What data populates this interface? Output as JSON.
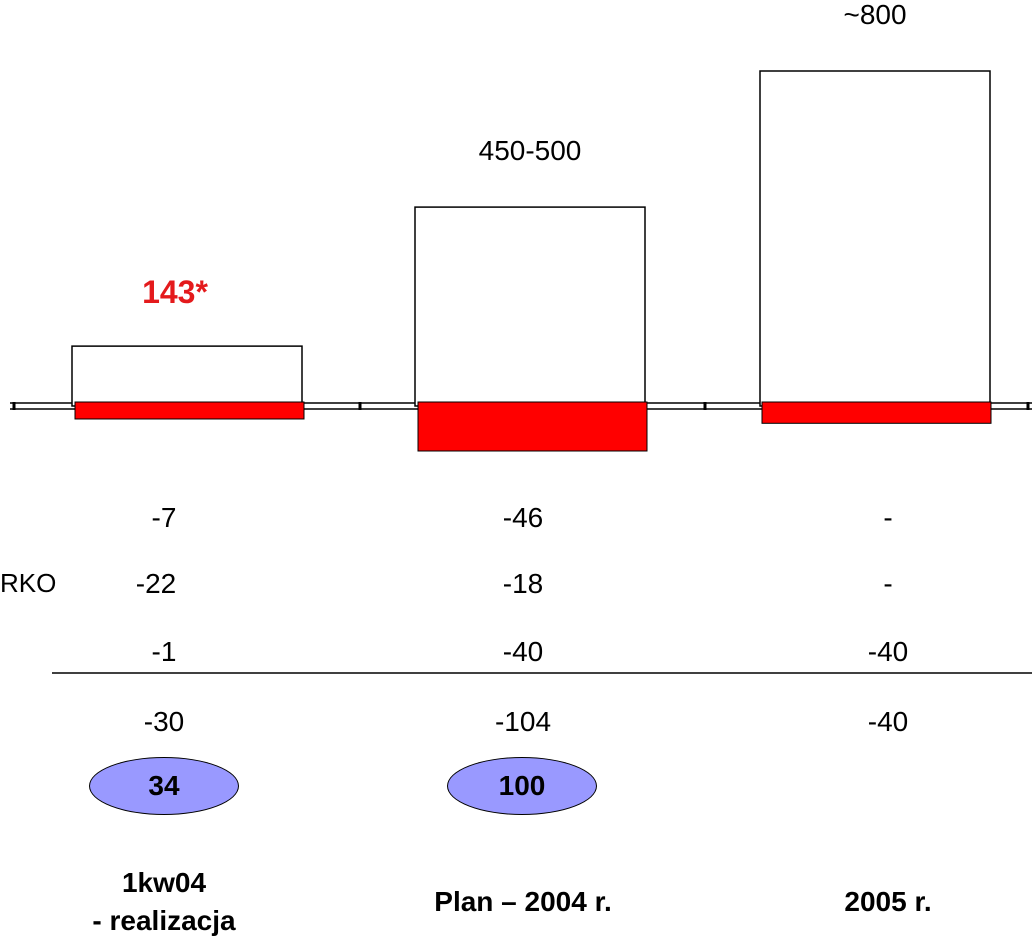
{
  "chart_data": {
    "type": "bar",
    "categories": [
      "1kw04\n- realizacja",
      "Plan – 2004 r.",
      "2005 r."
    ],
    "series": [
      {
        "values": [
          143,
          475,
          800
        ]
      },
      {
        "values": [
          -30,
          -104,
          -40
        ]
      }
    ],
    "value_labels": [
      "143*",
      "450-500",
      "~800"
    ],
    "value_label_colors": [
      "#e41a1c",
      "#000000",
      "#000000"
    ],
    "breakdown_rows": [
      [
        "-7",
        "-46",
        "-"
      ],
      [
        "-22",
        "-18",
        "-"
      ],
      [
        "-1",
        "-40",
        "-40"
      ]
    ],
    "row_label": "RKO",
    "totals": [
      "-30",
      "-104",
      "-40"
    ],
    "oval_values": [
      "34",
      "100",
      ""
    ],
    "colors": {
      "positive_bar": "#ffffff",
      "negative_bar": "#ff0000",
      "oval": "#9999ff"
    }
  }
}
